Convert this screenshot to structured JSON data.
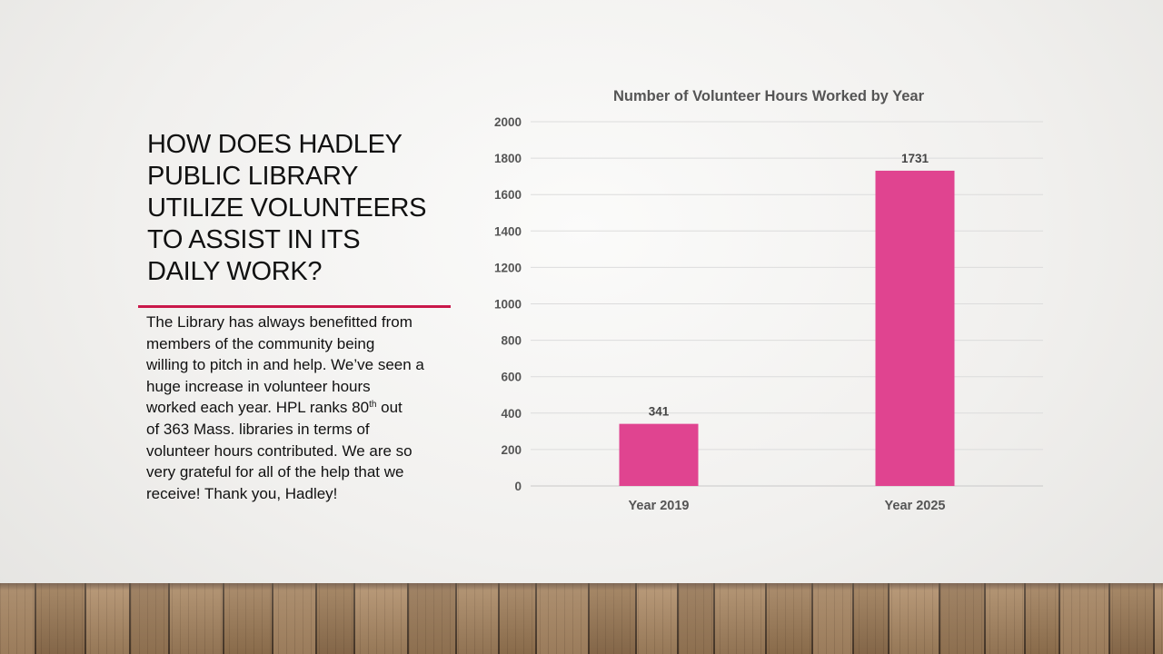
{
  "slide": {
    "title_lines": [
      "HOW DOES HADLEY",
      "PUBLIC LIBRARY",
      "UTILIZE VOLUNTEERS",
      "TO ASSIST IN ITS",
      "DAILY WORK?"
    ],
    "body": {
      "line1": "The Library has always benefitted from",
      "line2": "members of the community being",
      "line3": "willing to pitch in and help. We’ve seen a",
      "line4": "huge increase in volunteer hours",
      "line5_before": "worked each year. HPL ranks 80",
      "line5_sup": "th",
      "line5_after": " out",
      "line6": "of 363 Mass. libraries in terms of",
      "line7": "volunteer hours contributed. We are so",
      "line8": "very grateful for all of the help that we",
      "line9": "receive! Thank you, Hadley!"
    }
  },
  "colors": {
    "accent_rule": "#c9184a",
    "bar": "#e04490",
    "text": "#111111",
    "axis_text": "#555555"
  },
  "chart_data": {
    "type": "bar",
    "title": "Number of Volunteer Hours Worked by Year",
    "categories": [
      "Year 2019",
      "Year 2025"
    ],
    "values": [
      341,
      1731
    ],
    "data_labels": [
      "341",
      "1731"
    ],
    "ylim": [
      0,
      2000
    ],
    "yticks": [
      "0",
      "200",
      "400",
      "600",
      "800",
      "1000",
      "1200",
      "1400",
      "1600",
      "1800",
      "2000"
    ],
    "grid": true,
    "legend": "none"
  }
}
